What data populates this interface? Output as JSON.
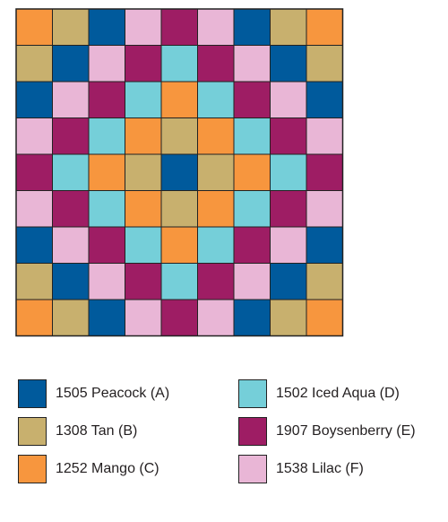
{
  "colors": {
    "A": "#005a9c",
    "B": "#c8b06e",
    "C": "#f7963e",
    "D": "#75cfd9",
    "E": "#9e1d64",
    "F": "#e9b6d6"
  },
  "grid": [
    [
      "C",
      "B",
      "A",
      "F",
      "E",
      "F",
      "A",
      "B",
      "C"
    ],
    [
      "B",
      "A",
      "F",
      "E",
      "D",
      "E",
      "F",
      "A",
      "B"
    ],
    [
      "A",
      "F",
      "E",
      "D",
      "C",
      "D",
      "E",
      "F",
      "A"
    ],
    [
      "F",
      "E",
      "D",
      "C",
      "B",
      "C",
      "D",
      "E",
      "F"
    ],
    [
      "E",
      "D",
      "C",
      "B",
      "A",
      "B",
      "C",
      "D",
      "E"
    ],
    [
      "F",
      "E",
      "D",
      "C",
      "B",
      "C",
      "D",
      "E",
      "F"
    ],
    [
      "A",
      "F",
      "E",
      "D",
      "C",
      "D",
      "E",
      "F",
      "A"
    ],
    [
      "B",
      "A",
      "F",
      "E",
      "D",
      "E",
      "F",
      "A",
      "B"
    ],
    [
      "C",
      "B",
      "A",
      "F",
      "E",
      "F",
      "A",
      "B",
      "C"
    ]
  ],
  "legend": [
    {
      "key": "A",
      "label": "1505 Peacock (A)"
    },
    {
      "key": "B",
      "label": "1308 Tan (B)"
    },
    {
      "key": "C",
      "label": "1252 Mango (C)"
    },
    {
      "key": "D",
      "label": "1502 Iced Aqua (D)"
    },
    {
      "key": "E",
      "label": "1907 Boysenberry (E)"
    },
    {
      "key": "F",
      "label": "1538 Lilac (F)"
    }
  ]
}
